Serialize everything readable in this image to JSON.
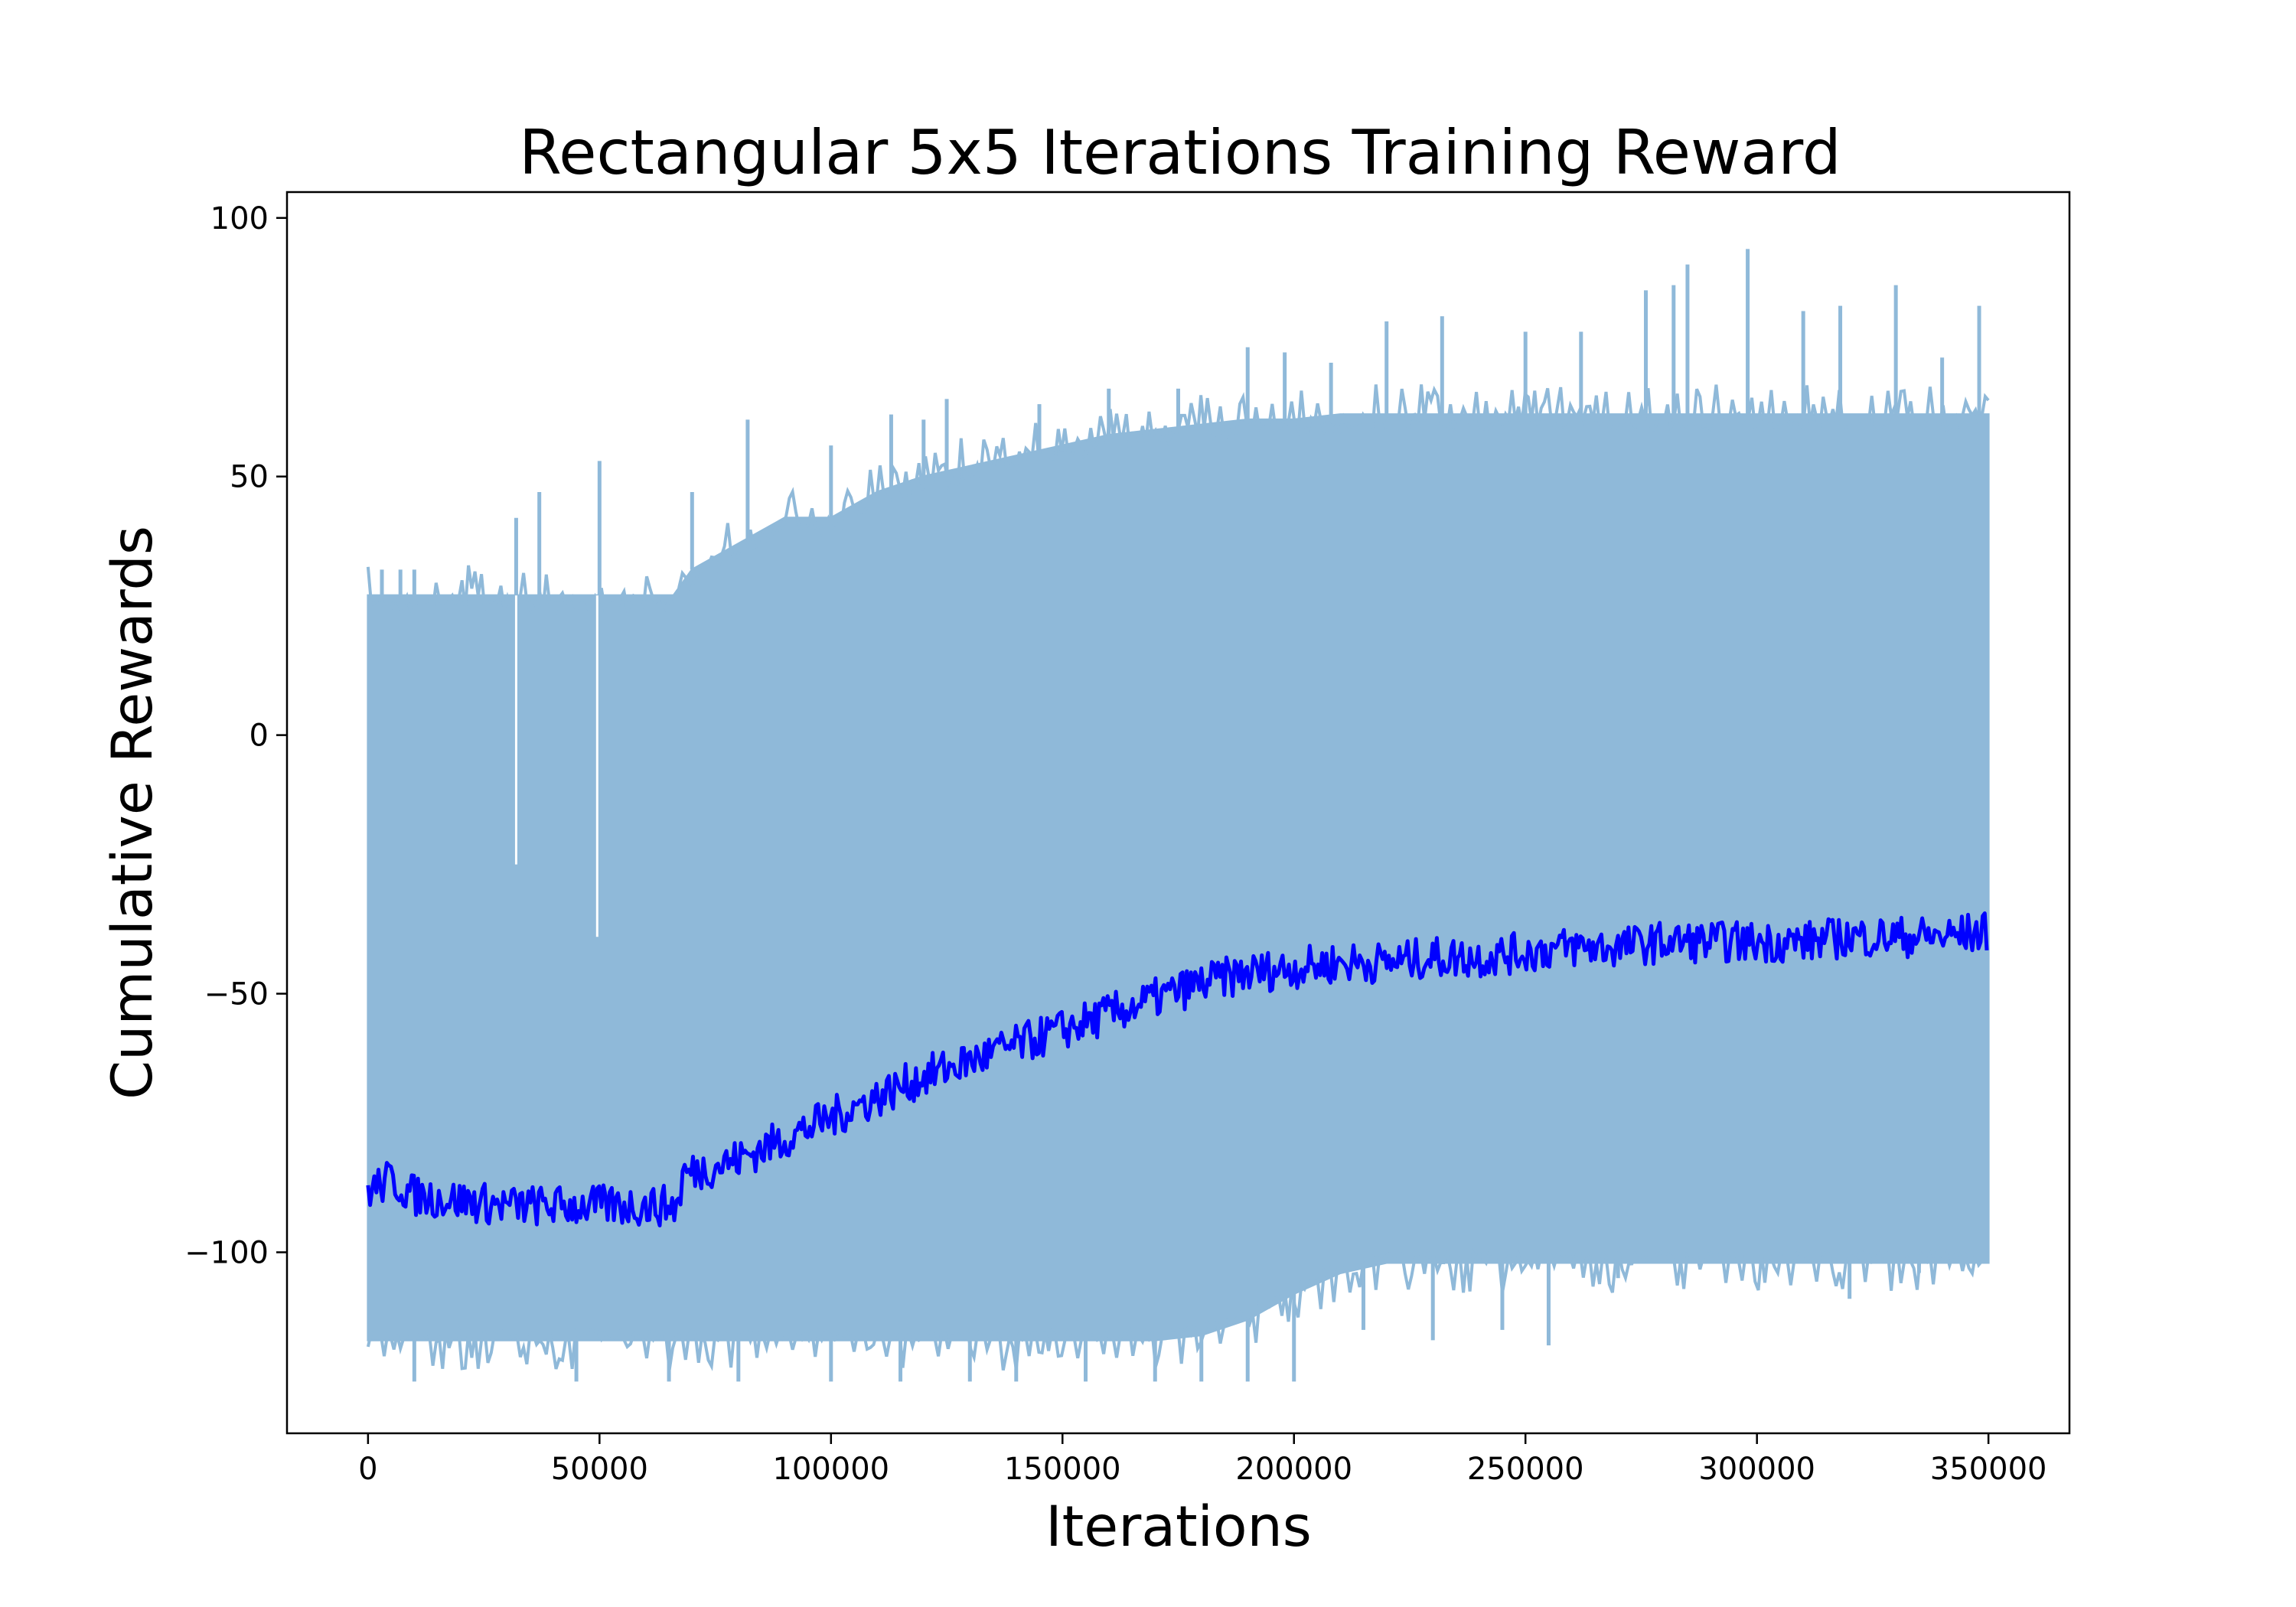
{
  "chart_data": {
    "type": "line",
    "title": "Rectangular 5x5 Iterations Training Reward",
    "xlabel": "Iterations",
    "ylabel": "Cumulative Rewards",
    "xlim": [
      -17500,
      367500
    ],
    "ylim": [
      -135,
      105
    ],
    "x_ticks": [
      0,
      50000,
      100000,
      150000,
      200000,
      250000,
      300000,
      350000
    ],
    "x_tick_labels": [
      "0",
      "50000",
      "100000",
      "150000",
      "200000",
      "250000",
      "300000",
      "350000"
    ],
    "y_ticks": [
      100,
      50,
      0,
      -50,
      -100
    ],
    "y_tick_labels": [
      "100",
      "50",
      "0",
      "−50",
      "−100"
    ],
    "grid": false,
    "legend": "none",
    "colors": {
      "raw": "#8fb9d9",
      "smoothed": "#0000ff"
    },
    "series": [
      {
        "id": "raw",
        "kind": "band",
        "x": [
          0,
          5000,
          10000,
          20000,
          30000,
          40000,
          50000,
          60000,
          66000,
          70000,
          80000,
          90000,
          100000,
          110000,
          120000,
          130000,
          140000,
          150000,
          160000,
          170000,
          180000,
          190000,
          200000,
          210000,
          220000,
          230000,
          240000,
          250000,
          260000,
          270000,
          280000,
          290000,
          300000,
          310000,
          320000,
          330000,
          340000,
          350000
        ],
        "upper": [
          27,
          27,
          27,
          27,
          27,
          27,
          27,
          27,
          27,
          32,
          37,
          42,
          42,
          47,
          50,
          52,
          54,
          56,
          58,
          59,
          60,
          61,
          61,
          62,
          62,
          62,
          62,
          62,
          62,
          62,
          62,
          62,
          62,
          62,
          62,
          62,
          62,
          62
        ],
        "lower": [
          -117,
          -117,
          -117,
          -117,
          -117,
          -117,
          -117,
          -117,
          -117,
          -117,
          -117,
          -117,
          -117,
          -117,
          -117,
          -117,
          -117,
          -117,
          -117,
          -117,
          -116,
          -113,
          -108,
          -104,
          -102,
          -102,
          -102,
          -102,
          -102,
          -102,
          -102,
          -102,
          -102,
          -102,
          -102,
          -102,
          -102,
          -102
        ],
        "spikes_up": [
          [
            3000,
            32
          ],
          [
            7000,
            32
          ],
          [
            10000,
            32
          ],
          [
            32000,
            42
          ],
          [
            37000,
            47
          ],
          [
            50000,
            53
          ],
          [
            70000,
            47
          ],
          [
            82000,
            61
          ],
          [
            100000,
            56
          ],
          [
            113000,
            62
          ],
          [
            120000,
            61
          ],
          [
            125000,
            65
          ],
          [
            145000,
            64
          ],
          [
            160000,
            67
          ],
          [
            175000,
            67
          ],
          [
            190000,
            75
          ],
          [
            198000,
            74
          ],
          [
            208000,
            72
          ],
          [
            220000,
            80
          ],
          [
            232000,
            81
          ],
          [
            250000,
            78
          ],
          [
            262000,
            78
          ],
          [
            276000,
            86
          ],
          [
            282000,
            87
          ],
          [
            285000,
            91
          ],
          [
            298000,
            94
          ],
          [
            310000,
            82
          ],
          [
            318000,
            83
          ],
          [
            330000,
            87
          ],
          [
            340000,
            73
          ],
          [
            348000,
            83
          ]
        ],
        "spikes_down": [
          [
            10000,
            -125
          ],
          [
            45000,
            -125
          ],
          [
            65000,
            -125
          ],
          [
            80000,
            -125
          ],
          [
            100000,
            -125
          ],
          [
            115000,
            -125
          ],
          [
            130000,
            -125
          ],
          [
            140000,
            -125
          ],
          [
            155000,
            -125
          ],
          [
            170000,
            -125
          ],
          [
            180000,
            -125
          ],
          [
            190000,
            -125
          ],
          [
            200000,
            -125
          ],
          [
            215000,
            -115
          ],
          [
            230000,
            -117
          ],
          [
            245000,
            -115
          ],
          [
            255000,
            -118
          ],
          [
            270000,
            -105
          ],
          [
            320000,
            -109
          ],
          [
            335000,
            -104
          ]
        ],
        "dips_down": [
          [
            32000,
            -25
          ],
          [
            49500,
            -39
          ]
        ]
      },
      {
        "id": "smoothed",
        "kind": "line",
        "x": [
          0,
          5000,
          10000,
          20000,
          30000,
          40000,
          50000,
          60000,
          67000,
          68000,
          80000,
          90000,
          100000,
          110000,
          120000,
          130000,
          140000,
          150000,
          160000,
          170000,
          180000,
          190000,
          200000,
          210000,
          220000,
          230000,
          240000,
          250000,
          260000,
          270000,
          280000,
          290000,
          300000,
          310000,
          320000,
          330000,
          340000,
          350000
        ],
        "values": [
          -88,
          -86,
          -89,
          -90,
          -91,
          -91,
          -91,
          -91,
          -91,
          -85,
          -82,
          -78,
          -74,
          -70,
          -66,
          -63,
          -60,
          -57,
          -54,
          -51,
          -48,
          -46,
          -45,
          -44,
          -44,
          -43,
          -43,
          -42,
          -41,
          -41,
          -40,
          -40,
          -40,
          -40,
          -39,
          -39,
          -39,
          -38
        ],
        "noise": 4
      }
    ]
  }
}
